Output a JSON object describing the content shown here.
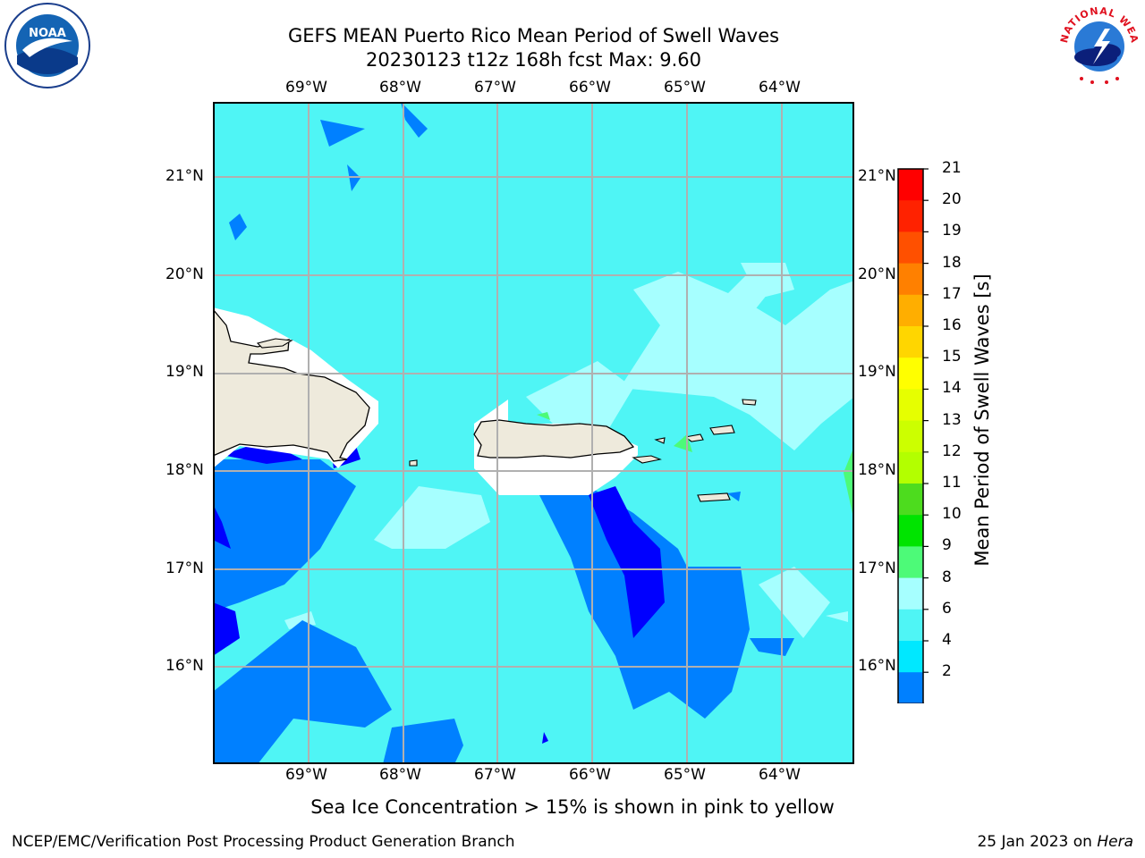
{
  "header": {
    "title_line1": "GEFS MEAN Puerto Rico Mean Period of Swell Waves",
    "title_line2": "20230123 t12z 168h fcst   Max: 9.60"
  },
  "map": {
    "lon_labels": [
      "69°W",
      "68°W",
      "67°W",
      "66°W",
      "65°W",
      "64°W"
    ],
    "lat_labels": [
      "21°N",
      "20°N",
      "19°N",
      "18°N",
      "17°N",
      "16°N"
    ],
    "ocean_color": "#4ff5f5",
    "land_color": "#eeeadc"
  },
  "colorbar": {
    "label": "Mean Period of Swell Waves [s]",
    "ticks": [
      "21",
      "20",
      "19",
      "18",
      "17",
      "16",
      "15",
      "14",
      "13",
      "12",
      "11",
      "10",
      "9",
      "8",
      "6",
      "4",
      "2"
    ],
    "colors": [
      "#ff0000",
      "#ff2200",
      "#ff5000",
      "#ff8000",
      "#ffae00",
      "#ffd600",
      "#ffff00",
      "#e6ff00",
      "#ccff00",
      "#b3ff00",
      "#4ddc1e",
      "#00e400",
      "#4dfa78",
      "#a6ffff",
      "#4ff5f5",
      "#00e8ff",
      "#0080ff"
    ],
    "under_color": "#0000ff"
  },
  "note": "Sea Ice Concentration > 15% is shown in pink to yellow",
  "footer": {
    "left": "NCEP/EMC/Verification Post Processing Product Generation Branch",
    "right_prefix": "25 Jan 2023 on ",
    "right_italic": "Hera"
  },
  "logos": {
    "noaa_text": "NOAA",
    "nws_text": "NATIONAL WEATHER SERVICE"
  }
}
